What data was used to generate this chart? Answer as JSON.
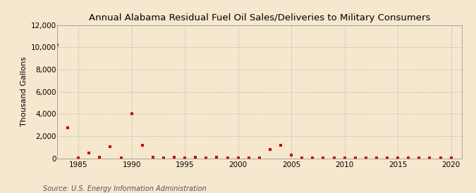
{
  "title": "Annual Alabama Residual Fuel Oil Sales/Deliveries to Military Consumers",
  "ylabel": "Thousand Gallons",
  "source": "Source: U.S. Energy Information Administration",
  "background_color": "#f5e8ce",
  "marker_color": "#cc0000",
  "marker": "s",
  "markersize": 3,
  "xlim": [
    1983,
    2021
  ],
  "ylim": [
    0,
    12000
  ],
  "yticks": [
    0,
    2000,
    4000,
    6000,
    8000,
    10000,
    12000
  ],
  "xticks": [
    1985,
    1990,
    1995,
    2000,
    2005,
    2010,
    2015,
    2020
  ],
  "data_years": [
    1983,
    1984,
    1985,
    1986,
    1987,
    1988,
    1989,
    1990,
    1991,
    1992,
    1993,
    1994,
    1995,
    1996,
    1997,
    1998,
    1999,
    2000,
    2001,
    2002,
    2003,
    2004,
    2005,
    2006,
    2007,
    2008,
    2009,
    2010,
    2011,
    2012,
    2013,
    2014,
    2015,
    2016,
    2017,
    2018,
    2019,
    2020
  ],
  "data_values": [
    10200,
    2750,
    5,
    450,
    100,
    1050,
    5,
    4000,
    1200,
    100,
    30,
    100,
    30,
    100,
    30,
    100,
    5,
    50,
    5,
    50,
    800,
    1150,
    300,
    30,
    5,
    30,
    5,
    30,
    5,
    30,
    5,
    30,
    5,
    30,
    5,
    30,
    5,
    30
  ]
}
